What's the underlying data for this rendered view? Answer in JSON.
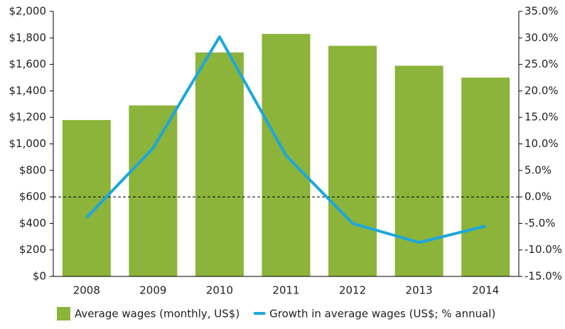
{
  "chart_data": {
    "type": "bar_line",
    "categories": [
      "2008",
      "2009",
      "2010",
      "2011",
      "2012",
      "2013",
      "2014"
    ],
    "series": [
      {
        "name": "Average wages (monthly, US$)",
        "color": "#8cb33a",
        "type": "bar",
        "values": [
          1180,
          1290,
          1690,
          1830,
          1740,
          1590,
          1500
        ]
      },
      {
        "name": "Growth in average wages (US$; % annual)",
        "color": "#1ca7dc",
        "type": "line",
        "axis": "y2",
        "values": [
          -3.9,
          9.2,
          30.2,
          7.8,
          -5.0,
          -8.6,
          -5.5
        ]
      }
    ],
    "ylim": [
      0,
      2000
    ],
    "yticks": [
      {
        "value": 0,
        "label": "$0"
      },
      {
        "value": 200,
        "label": "$200"
      },
      {
        "value": 400,
        "label": "$400"
      },
      {
        "value": 600,
        "label": "$600"
      },
      {
        "value": 800,
        "label": "$800"
      },
      {
        "value": 1000,
        "label": "$1,000"
      },
      {
        "value": 1200,
        "label": "$1,200"
      },
      {
        "value": 1400,
        "label": "$1,400"
      },
      {
        "value": 1600,
        "label": "$1,600"
      },
      {
        "value": 1800,
        "label": "$1,800"
      },
      {
        "value": 2000,
        "label": "$2,000"
      }
    ],
    "y2lim": [
      -15,
      35
    ],
    "y2ticks": [
      {
        "value": -15,
        "label": "-15.0%"
      },
      {
        "value": -10,
        "label": "-10.0%"
      },
      {
        "value": -5,
        "label": "-5.0%"
      },
      {
        "value": 0,
        "label": "0.0%"
      },
      {
        "value": 5,
        "label": "5.0%"
      },
      {
        "value": 10,
        "label": "10.0%"
      },
      {
        "value": 15,
        "label": "15.0%"
      },
      {
        "value": 20,
        "label": "20.0%"
      },
      {
        "value": 25,
        "label": "25.0%"
      },
      {
        "value": 30,
        "label": "30.0%"
      },
      {
        "value": 35,
        "label": "35.0%"
      }
    ],
    "y2_reference_line": 0,
    "legend": "bottom"
  }
}
